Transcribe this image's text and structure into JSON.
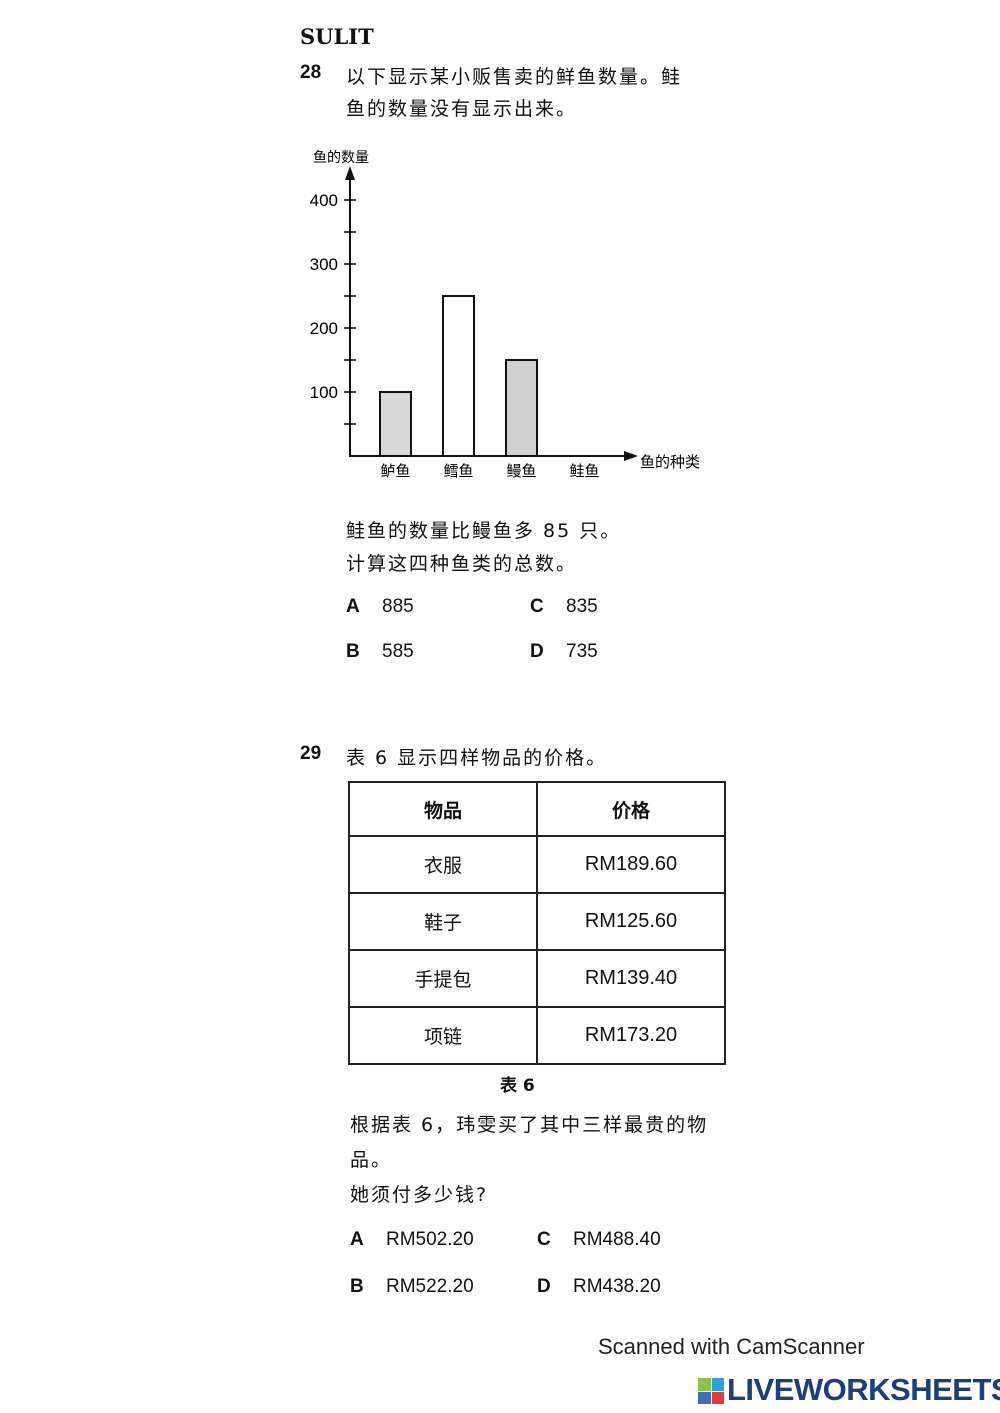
{
  "header": {
    "mark": "SULIT"
  },
  "q28": {
    "number": "28",
    "text_line1": "以下显示某小贩售卖的鲜鱼数量。鲑",
    "text_line2": "鱼的数量没有显示出来。",
    "statement1": "鲑鱼的数量比鳗鱼多 85 只。",
    "statement2": "计算这四种鱼类的总数。",
    "options": [
      {
        "letter": "A",
        "value": "885"
      },
      {
        "letter": "C",
        "value": "835"
      },
      {
        "letter": "B",
        "value": "585"
      },
      {
        "letter": "D",
        "value": "735"
      }
    ]
  },
  "chart_data": {
    "type": "bar",
    "title": "",
    "ylabel": "鱼的数量",
    "xlabel": "鱼的种类",
    "categories": [
      "鲈鱼",
      "鳕鱼",
      "鳗鱼",
      "鲑鱼"
    ],
    "values": [
      100,
      250,
      150,
      null
    ],
    "ylim": [
      0,
      400
    ],
    "yticks": [
      100,
      200,
      300,
      400
    ],
    "minor_tick_step": 50,
    "grid": false,
    "bar_colors": [
      "#d8d8d8",
      "#ffffff",
      "#d0d0d0",
      null
    ]
  },
  "q29": {
    "number": "29",
    "intro": "表 6 显示四样物品的价格。",
    "table": {
      "headers": [
        "物品",
        "价格"
      ],
      "rows": [
        [
          "衣服",
          "RM189.60"
        ],
        [
          "鞋子",
          "RM125.60"
        ],
        [
          "手提包",
          "RM139.40"
        ],
        [
          "项链",
          "RM173.20"
        ]
      ],
      "caption": "表 6"
    },
    "text_line1": "根据表 6，玮雯买了其中三样最贵的物",
    "text_line2": "品。",
    "question": "她须付多少钱?",
    "options": [
      {
        "letter": "A",
        "value": "RM502.20"
      },
      {
        "letter": "C",
        "value": "RM488.40"
      },
      {
        "letter": "B",
        "value": "RM522.20"
      },
      {
        "letter": "D",
        "value": "RM438.20"
      }
    ]
  },
  "footer": {
    "scanner": "Scanned with CamScanner",
    "watermark": "LIVEWORKSHEETS",
    "logo_letters": [
      "L",
      "I",
      "V",
      "E"
    ]
  }
}
